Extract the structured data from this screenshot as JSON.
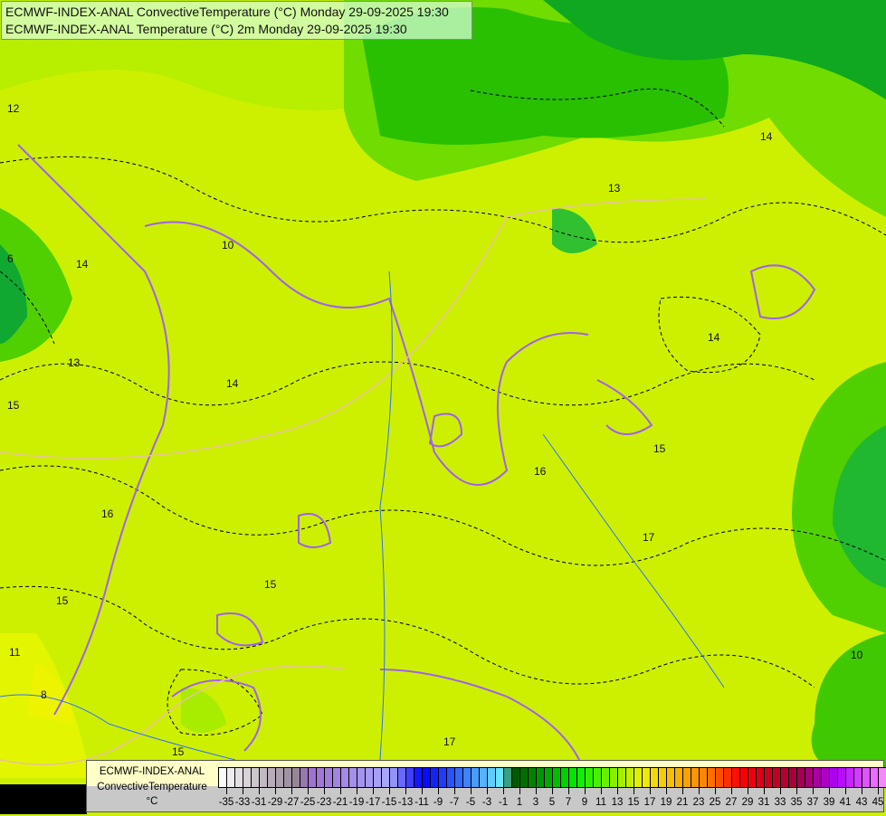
{
  "header": {
    "line1": "ECMWF-INDEX-ANAL ConvectiveTemperature (°C) Monday 29-09-2025 19:30",
    "line2": "ECMWF-INDEX-ANAL Temperature (°C) 2m Monday 29-09-2025 19:30"
  },
  "legend": {
    "model": "ECMWF-INDEX-ANAL",
    "parameter": "ConvectiveTemperature",
    "unit": "°C",
    "min": -36,
    "max": 46,
    "labels": [
      "-35",
      "-33",
      "-31",
      "-29",
      "-27",
      "-25",
      "-23",
      "-21",
      "-19",
      "-17",
      "-15",
      "-13",
      "-11",
      "-9",
      "-7",
      "-5",
      "-3",
      "-1",
      "1",
      "3",
      "5",
      "7",
      "9",
      "11",
      "13",
      "15",
      "17",
      "19",
      "21",
      "23",
      "25",
      "27",
      "29",
      "31",
      "33",
      "35",
      "37",
      "39",
      "41",
      "43",
      "45"
    ],
    "color_stops": [
      {
        "v": -36,
        "c": "#ffffff"
      },
      {
        "v": -26,
        "c": "#908090"
      },
      {
        "v": -25,
        "c": "#a070d0"
      },
      {
        "v": -15,
        "c": "#a8a8ff"
      },
      {
        "v": -11,
        "c": "#0000ff"
      },
      {
        "v": -1,
        "c": "#70f0ff"
      },
      {
        "v": 0,
        "c": "#005000"
      },
      {
        "v": 8,
        "c": "#00f000"
      },
      {
        "v": 16,
        "c": "#f0f000"
      },
      {
        "v": 24,
        "c": "#ff8000"
      },
      {
        "v": 28,
        "c": "#ff0000"
      },
      {
        "v": 35,
        "c": "#a00040"
      },
      {
        "v": 40,
        "c": "#b000ff"
      },
      {
        "v": 46,
        "c": "#ff90ff"
      }
    ]
  },
  "map": {
    "colors": {
      "base": "#cdf000",
      "warm": "#e0f800",
      "cool": "#9ee800",
      "green": "#30c000",
      "dark_green": "#00a020",
      "isotherm": "#a060f0"
    },
    "contour_labels": [
      "12",
      "13",
      "14",
      "15",
      "16",
      "17",
      "10",
      "8",
      "6",
      "11",
      "14",
      "13",
      "15",
      "16",
      "15",
      "14",
      "15",
      "17",
      "10",
      "14",
      "15"
    ]
  }
}
